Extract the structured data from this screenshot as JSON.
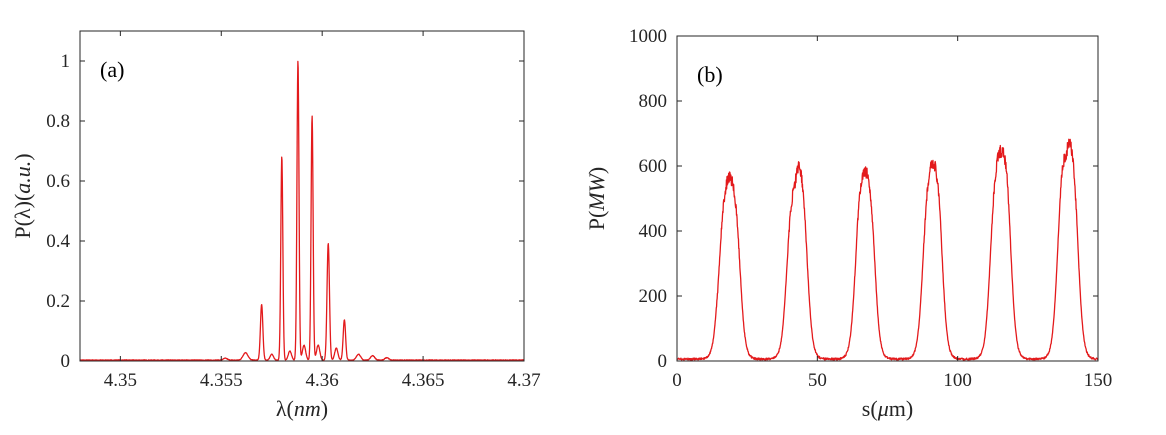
{
  "chart_data": [
    {
      "type": "line",
      "panel_label": "(a)",
      "xlabel": {
        "prefix": "λ(",
        "var": "nm",
        "suffix": ")"
      },
      "ylabel": {
        "prefix": "P(λ)(",
        "var": "a.u.",
        "suffix": ")"
      },
      "xlim": [
        4.348,
        4.37
      ],
      "ylim": [
        0,
        1.1
      ],
      "xticks": [
        4.35,
        4.355,
        4.36,
        4.365,
        4.37
      ],
      "xtick_labels": [
        "4.35",
        "4.355",
        "4.36",
        "4.365",
        "4.37"
      ],
      "yticks": [
        0,
        0.2,
        0.4,
        0.6,
        0.8,
        1
      ],
      "ytick_labels": [
        "0",
        "0.2",
        "0.4",
        "0.6",
        "0.8",
        "1"
      ],
      "grid": false,
      "series": [
        {
          "color": "#e31a1c",
          "peaks": [
            {
              "x": 4.3562,
              "y": 0.025,
              "w": 0.00012
            },
            {
              "x": 4.357,
              "y": 0.185,
              "w": 6e-05
            },
            {
              "x": 4.3575,
              "y": 0.02,
              "w": 8e-05
            },
            {
              "x": 4.358,
              "y": 0.68,
              "w": 5e-05
            },
            {
              "x": 4.3584,
              "y": 0.03,
              "w": 8e-05
            },
            {
              "x": 4.3588,
              "y": 1.0,
              "w": 5e-05
            },
            {
              "x": 4.3591,
              "y": 0.05,
              "w": 8e-05
            },
            {
              "x": 4.3595,
              "y": 0.815,
              "w": 5e-05
            },
            {
              "x": 4.3598,
              "y": 0.05,
              "w": 8e-05
            },
            {
              "x": 4.3603,
              "y": 0.39,
              "w": 6e-05
            },
            {
              "x": 4.3607,
              "y": 0.04,
              "w": 8e-05
            },
            {
              "x": 4.3611,
              "y": 0.135,
              "w": 6e-05
            },
            {
              "x": 4.3618,
              "y": 0.02,
              "w": 0.0001
            },
            {
              "x": 4.3625,
              "y": 0.015,
              "w": 0.0001
            },
            {
              "x": 4.3632,
              "y": 0.008,
              "w": 0.0001
            },
            {
              "x": 4.3552,
              "y": 0.006,
              "w": 0.0001
            }
          ]
        }
      ]
    },
    {
      "type": "line",
      "panel_label": "(b)",
      "xlabel": {
        "prefix": "s(",
        "var": "μ",
        "suffix": "m)"
      },
      "ylabel": {
        "prefix": "P(",
        "var": "MW",
        "suffix": ")"
      },
      "xlim": [
        0,
        150
      ],
      "ylim": [
        0,
        1000
      ],
      "xticks": [
        0,
        50,
        100,
        150
      ],
      "xtick_labels": [
        "0",
        "50",
        "100",
        "150"
      ],
      "yticks": [
        0,
        200,
        400,
        600,
        800,
        1000
      ],
      "ytick_labels": [
        "0",
        "200",
        "400",
        "600",
        "800",
        "1000"
      ],
      "grid": false,
      "series": [
        {
          "color": "#e31a1c",
          "pulses": [
            {
              "start": 14.5,
              "end": 22.5,
              "shape": [
                420,
                500,
                560,
                575,
                560,
                540
              ]
            },
            {
              "start": 39.0,
              "end": 46.5,
              "shape": [
                520,
                540,
                560,
                630,
                600,
                570
              ]
            },
            {
              "start": 63.5,
              "end": 70.5,
              "shape": [
                560,
                590,
                600,
                600,
                595,
                585
              ]
            },
            {
              "start": 87.5,
              "end": 94.5,
              "shape": [
                560,
                590,
                620,
                630,
                635,
                620
              ]
            },
            {
              "start": 111.5,
              "end": 119.0,
              "shape": [
                580,
                620,
                650,
                665,
                675,
                650
              ]
            },
            {
              "start": 135.5,
              "end": 143.0,
              "shape": [
                620,
                670,
                650,
                700,
                680,
                640
              ]
            }
          ]
        }
      ]
    }
  ]
}
